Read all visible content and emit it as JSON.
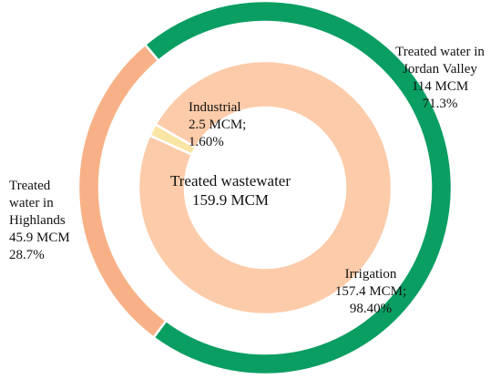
{
  "chart_data": {
    "type": "pie",
    "subtype": "nested-donut",
    "center_label": [
      "Treated wastewater",
      "159.9 MCM"
    ],
    "outer_ring": {
      "slices": [
        {
          "name": "Treated water in Jordan Valley",
          "value": 114,
          "unit": "MCM",
          "percent": 71.3,
          "color": "#0a9e62",
          "label_lines": [
            "Treated water in",
            "Jordan Valley",
            "114 MCM",
            "71.3%"
          ]
        },
        {
          "name": "Treated water in Highlands",
          "value": 45.9,
          "unit": "MCM",
          "percent": 28.7,
          "color": "#f8b186",
          "label_lines": [
            "Treated",
            "water in",
            "Highlands",
            "45.9 MCM",
            "28.7%"
          ]
        }
      ]
    },
    "inner_ring": {
      "slices": [
        {
          "name": "Irrigation",
          "value": 157.4,
          "unit": "MCM",
          "percent": 98.4,
          "color": "#fccba9",
          "label_lines": [
            "Irrigation",
            "157.4 MCM;",
            "98.40%"
          ]
        },
        {
          "name": "Industrial",
          "value": 2.5,
          "unit": "MCM",
          "percent": 1.6,
          "color": "#fae6a4",
          "label_lines": [
            "Industrial",
            "2.5 MCM;",
            "1.60%"
          ]
        }
      ]
    }
  }
}
